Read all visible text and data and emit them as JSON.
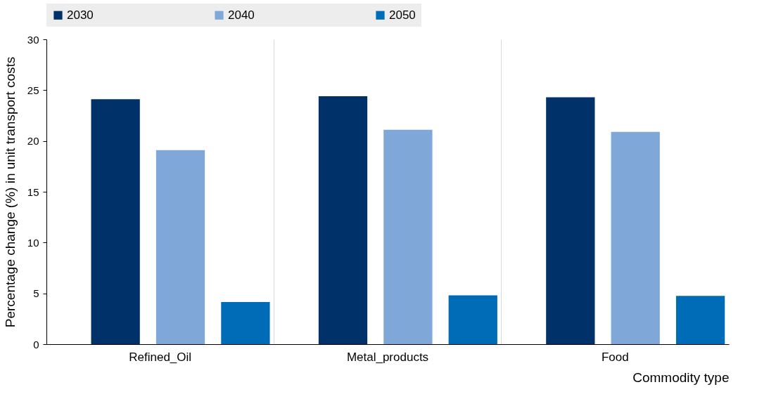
{
  "chart_data": {
    "type": "bar",
    "categories": [
      "Refined_Oil",
      "Metal_products",
      "Food"
    ],
    "series": [
      {
        "name": "2030",
        "color": "#003168",
        "values": [
          24.1,
          24.4,
          24.3
        ]
      },
      {
        "name": "2040",
        "color": "#7fa8d9",
        "values": [
          19.1,
          21.1,
          20.9
        ]
      },
      {
        "name": "2050",
        "color": "#006bb6",
        "values": [
          4.15,
          4.8,
          4.75
        ]
      }
    ],
    "xlabel": "Commodity type",
    "ylabel": "Percentage change (%) in unit transport costs",
    "ylim": [
      0,
      30
    ],
    "yticks": [
      0,
      5,
      10,
      15,
      20,
      25,
      30
    ],
    "grid": "x",
    "legend": "top"
  }
}
